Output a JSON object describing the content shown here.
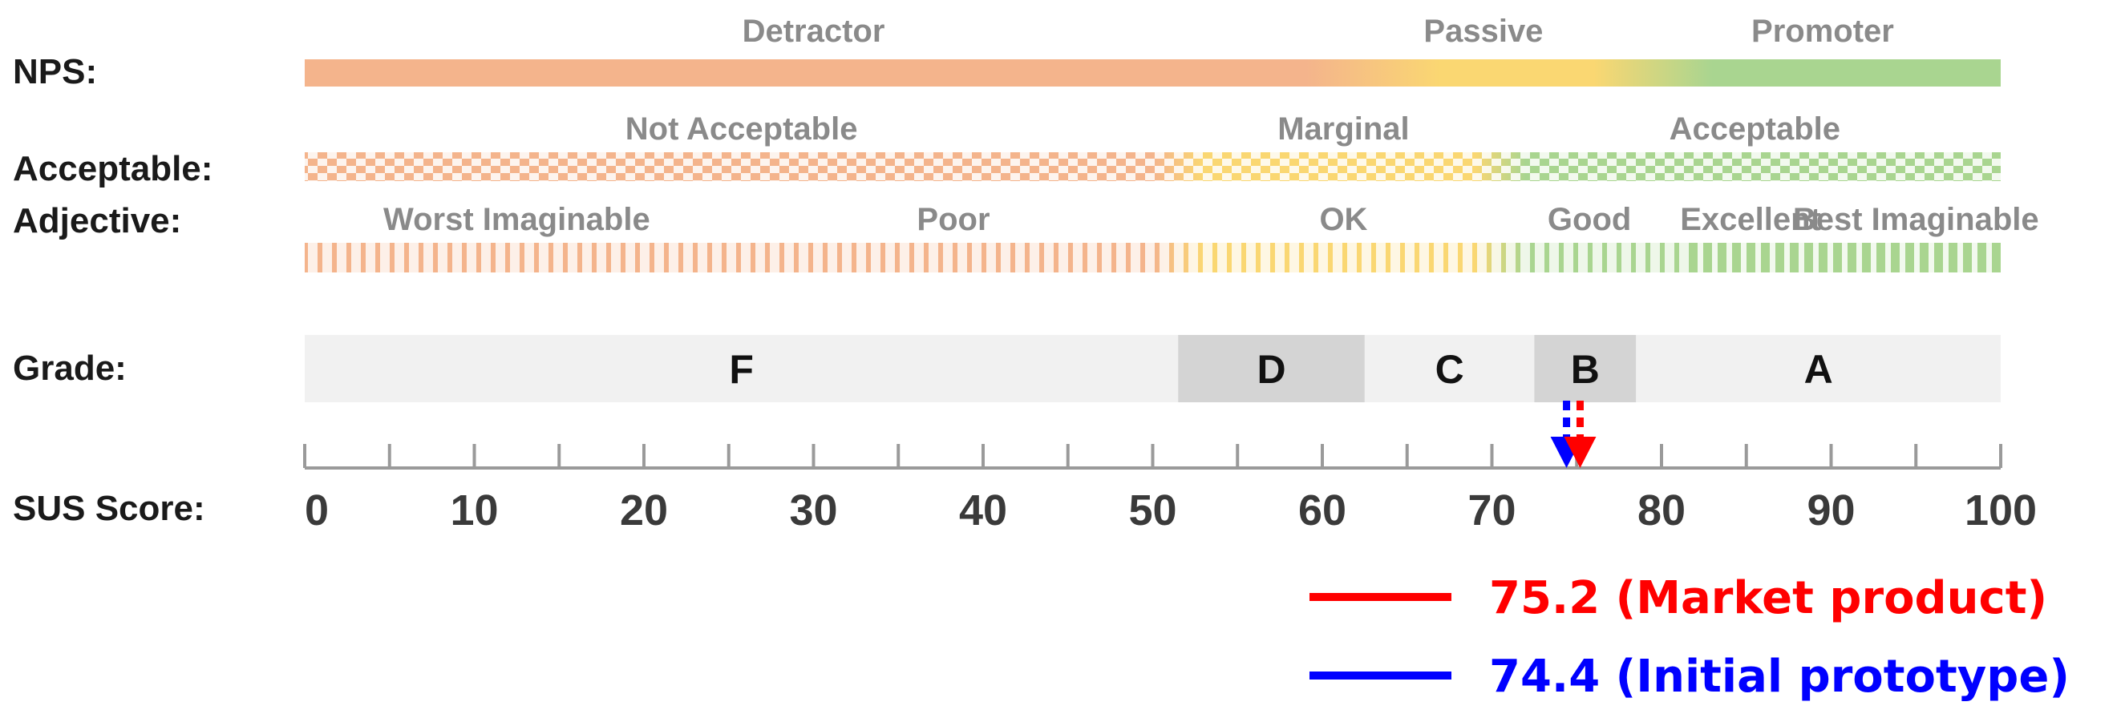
{
  "row_labels": {
    "nps": "NPS:",
    "acceptable": "Acceptable:",
    "adjective": "Adjective:",
    "grade": "Grade:",
    "sus_score": "SUS Score:"
  },
  "nps": {
    "categories": [
      {
        "label": "Detractor",
        "from": 0,
        "to": 60
      },
      {
        "label": "Passive",
        "from": 60,
        "to": 79
      },
      {
        "label": "Promoter",
        "from": 79,
        "to": 100
      }
    ]
  },
  "acceptable": {
    "categories": [
      {
        "label": "Not Acceptable",
        "from": 0,
        "to": 51.5
      },
      {
        "label": "Marginal",
        "from": 51.5,
        "to": 71
      },
      {
        "label": "Acceptable",
        "from": 71,
        "to": 100
      }
    ]
  },
  "adjective": {
    "categories": [
      {
        "label": "Worst Imaginable",
        "from": 0,
        "to": 25
      },
      {
        "label": "Poor",
        "from": 25,
        "to": 51.5
      },
      {
        "label": "OK",
        "from": 51.5,
        "to": 71
      },
      {
        "label": "Good",
        "from": 71,
        "to": 80.5
      },
      {
        "label": "Excellent",
        "from": 80.5,
        "to": 90
      },
      {
        "label": "Best Imaginable",
        "from": 90,
        "to": 100
      }
    ]
  },
  "grades": [
    {
      "label": "F",
      "from": 0,
      "to": 51.5,
      "shade": "light"
    },
    {
      "label": "D",
      "from": 51.5,
      "to": 62.5,
      "shade": "dark"
    },
    {
      "label": "C",
      "from": 62.5,
      "to": 72.5,
      "shade": "light"
    },
    {
      "label": "B",
      "from": 72.5,
      "to": 78.5,
      "shade": "dark"
    },
    {
      "label": "A",
      "from": 78.5,
      "to": 100,
      "shade": "light"
    }
  ],
  "axis": {
    "min": 0,
    "max": 100,
    "major_ticks": [
      0,
      10,
      20,
      30,
      40,
      50,
      60,
      70,
      80,
      90,
      100
    ],
    "minor_step": 5
  },
  "markers": [
    {
      "value": 74.4,
      "label": "74.4 (Initial prototype)",
      "color": "#0000ff"
    },
    {
      "value": 75.2,
      "label": "75.2 (Market product)",
      "color": "#ff0000"
    }
  ],
  "legend": [
    {
      "label": "75.2 (Market product)",
      "color": "#ff0000"
    },
    {
      "label": "74.4 (Initial prototype)",
      "color": "#0000ff"
    }
  ],
  "colors": {
    "orange": "#f4b48c",
    "yellow": "#fad772",
    "green": "#a9d590",
    "grade_light": "#f1f1f1",
    "grade_dark": "#d4d4d4"
  }
}
